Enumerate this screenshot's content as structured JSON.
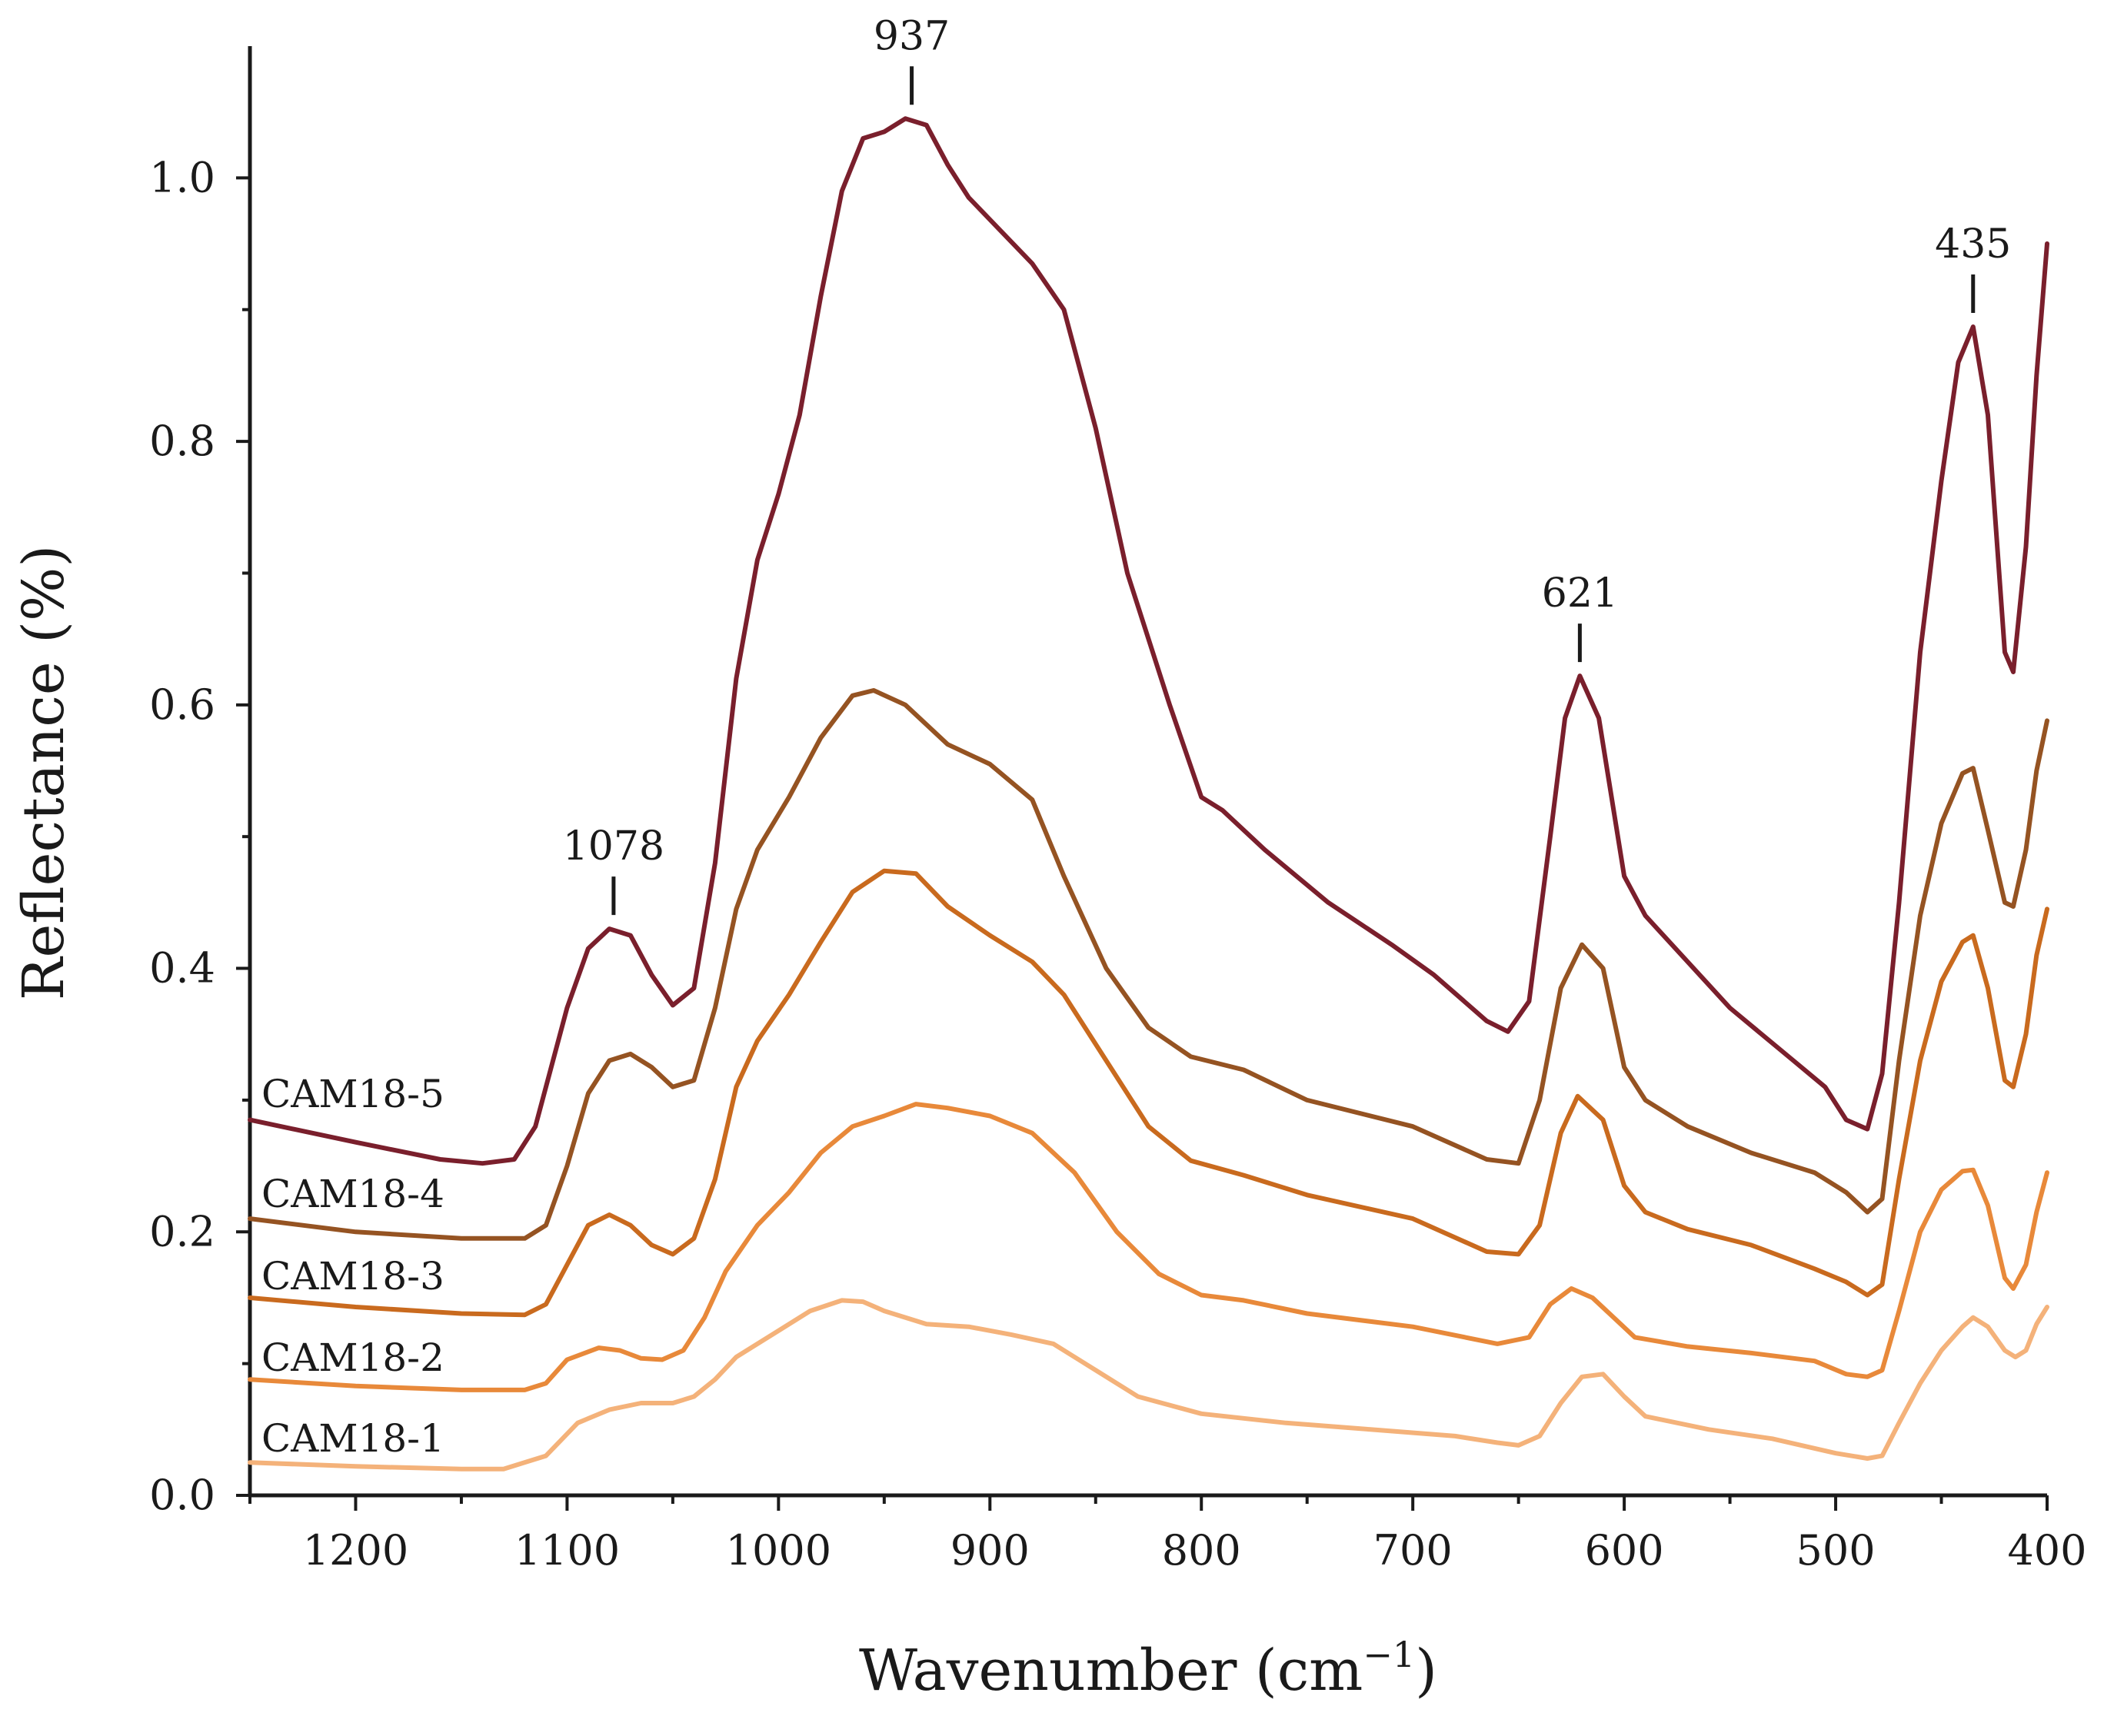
{
  "chart_data": {
    "type": "line",
    "title": "",
    "xlabel": "Wavenumber (cm",
    "xlabel_sup": "−1",
    "xlabel_close": ")",
    "ylabel": "Reflectance (%)",
    "xlim": [
      1250,
      400
    ],
    "ylim": [
      0,
      1.1
    ],
    "x_reversed": true,
    "grid": false,
    "xticks": [
      1200,
      1100,
      1000,
      900,
      800,
      700,
      600,
      500,
      400
    ],
    "xtick_labels": [
      "1200",
      "1100",
      "1000",
      "900",
      "800",
      "700",
      "600",
      "500",
      "400"
    ],
    "yticks": [
      0.0,
      0.2,
      0.4,
      0.6,
      0.8,
      1.0
    ],
    "ytick_labels": [
      "0.0",
      "0.2",
      "0.4",
      "0.6",
      "0.8",
      "1.0"
    ],
    "peak_annotations": [
      {
        "label": "1078",
        "x": 1078,
        "y": 0.43,
        "series": "CAM18-5"
      },
      {
        "label": "937",
        "x": 937,
        "y": 1.045,
        "series": "CAM18-5"
      },
      {
        "label": "621",
        "x": 621,
        "y": 0.622,
        "series": "CAM18-5"
      },
      {
        "label": "435",
        "x": 435,
        "y": 0.887,
        "series": "CAM18-5"
      }
    ],
    "series": [
      {
        "name": "CAM18-1",
        "color": "#f4b27a",
        "points": [
          [
            1250,
            0.025
          ],
          [
            1200,
            0.022
          ],
          [
            1150,
            0.02
          ],
          [
            1130,
            0.02
          ],
          [
            1110,
            0.03
          ],
          [
            1095,
            0.055
          ],
          [
            1080,
            0.065
          ],
          [
            1065,
            0.07
          ],
          [
            1050,
            0.07
          ],
          [
            1040,
            0.075
          ],
          [
            1030,
            0.088
          ],
          [
            1020,
            0.105
          ],
          [
            1000,
            0.125
          ],
          [
            985,
            0.14
          ],
          [
            970,
            0.148
          ],
          [
            960,
            0.147
          ],
          [
            950,
            0.14
          ],
          [
            930,
            0.13
          ],
          [
            910,
            0.128
          ],
          [
            890,
            0.122
          ],
          [
            870,
            0.115
          ],
          [
            850,
            0.095
          ],
          [
            830,
            0.075
          ],
          [
            800,
            0.062
          ],
          [
            760,
            0.055
          ],
          [
            720,
            0.05
          ],
          [
            680,
            0.045
          ],
          [
            660,
            0.04
          ],
          [
            650,
            0.038
          ],
          [
            640,
            0.045
          ],
          [
            630,
            0.07
          ],
          [
            620,
            0.09
          ],
          [
            610,
            0.092
          ],
          [
            600,
            0.075
          ],
          [
            590,
            0.06
          ],
          [
            560,
            0.05
          ],
          [
            530,
            0.043
          ],
          [
            500,
            0.032
          ],
          [
            485,
            0.028
          ],
          [
            478,
            0.03
          ],
          [
            470,
            0.055
          ],
          [
            460,
            0.085
          ],
          [
            450,
            0.11
          ],
          [
            440,
            0.128
          ],
          [
            435,
            0.135
          ],
          [
            428,
            0.128
          ],
          [
            420,
            0.11
          ],
          [
            415,
            0.105
          ],
          [
            410,
            0.11
          ],
          [
            405,
            0.13
          ],
          [
            400,
            0.143
          ]
        ]
      },
      {
        "name": "CAM18-2",
        "color": "#e8893a",
        "points": [
          [
            1250,
            0.088
          ],
          [
            1200,
            0.083
          ],
          [
            1150,
            0.08
          ],
          [
            1120,
            0.08
          ],
          [
            1110,
            0.085
          ],
          [
            1100,
            0.103
          ],
          [
            1085,
            0.112
          ],
          [
            1075,
            0.11
          ],
          [
            1065,
            0.104
          ],
          [
            1055,
            0.103
          ],
          [
            1045,
            0.11
          ],
          [
            1035,
            0.135
          ],
          [
            1025,
            0.17
          ],
          [
            1010,
            0.205
          ],
          [
            995,
            0.23
          ],
          [
            980,
            0.26
          ],
          [
            965,
            0.28
          ],
          [
            950,
            0.288
          ],
          [
            935,
            0.297
          ],
          [
            920,
            0.294
          ],
          [
            900,
            0.288
          ],
          [
            880,
            0.275
          ],
          [
            860,
            0.245
          ],
          [
            840,
            0.2
          ],
          [
            820,
            0.168
          ],
          [
            800,
            0.152
          ],
          [
            780,
            0.148
          ],
          [
            750,
            0.138
          ],
          [
            700,
            0.128
          ],
          [
            660,
            0.115
          ],
          [
            645,
            0.12
          ],
          [
            635,
            0.145
          ],
          [
            625,
            0.157
          ],
          [
            615,
            0.15
          ],
          [
            605,
            0.135
          ],
          [
            595,
            0.12
          ],
          [
            570,
            0.113
          ],
          [
            540,
            0.108
          ],
          [
            510,
            0.102
          ],
          [
            495,
            0.092
          ],
          [
            485,
            0.09
          ],
          [
            478,
            0.095
          ],
          [
            470,
            0.14
          ],
          [
            460,
            0.2
          ],
          [
            450,
            0.232
          ],
          [
            440,
            0.246
          ],
          [
            435,
            0.247
          ],
          [
            428,
            0.22
          ],
          [
            420,
            0.165
          ],
          [
            416,
            0.157
          ],
          [
            410,
            0.175
          ],
          [
            405,
            0.215
          ],
          [
            400,
            0.245
          ]
        ]
      },
      {
        "name": "CAM18-3",
        "color": "#c96a1e",
        "points": [
          [
            1250,
            0.15
          ],
          [
            1200,
            0.143
          ],
          [
            1150,
            0.138
          ],
          [
            1120,
            0.137
          ],
          [
            1110,
            0.145
          ],
          [
            1100,
            0.175
          ],
          [
            1090,
            0.205
          ],
          [
            1080,
            0.213
          ],
          [
            1070,
            0.205
          ],
          [
            1060,
            0.19
          ],
          [
            1050,
            0.183
          ],
          [
            1040,
            0.195
          ],
          [
            1030,
            0.24
          ],
          [
            1020,
            0.31
          ],
          [
            1010,
            0.345
          ],
          [
            995,
            0.38
          ],
          [
            980,
            0.42
          ],
          [
            965,
            0.458
          ],
          [
            950,
            0.474
          ],
          [
            935,
            0.472
          ],
          [
            920,
            0.447
          ],
          [
            900,
            0.425
          ],
          [
            880,
            0.405
          ],
          [
            865,
            0.38
          ],
          [
            845,
            0.33
          ],
          [
            825,
            0.28
          ],
          [
            805,
            0.254
          ],
          [
            780,
            0.243
          ],
          [
            750,
            0.228
          ],
          [
            700,
            0.21
          ],
          [
            665,
            0.185
          ],
          [
            650,
            0.183
          ],
          [
            640,
            0.205
          ],
          [
            630,
            0.275
          ],
          [
            622,
            0.303
          ],
          [
            610,
            0.285
          ],
          [
            600,
            0.235
          ],
          [
            590,
            0.215
          ],
          [
            570,
            0.202
          ],
          [
            540,
            0.19
          ],
          [
            510,
            0.172
          ],
          [
            495,
            0.162
          ],
          [
            485,
            0.152
          ],
          [
            478,
            0.16
          ],
          [
            470,
            0.24
          ],
          [
            460,
            0.33
          ],
          [
            450,
            0.39
          ],
          [
            440,
            0.42
          ],
          [
            435,
            0.425
          ],
          [
            428,
            0.385
          ],
          [
            420,
            0.315
          ],
          [
            416,
            0.31
          ],
          [
            410,
            0.35
          ],
          [
            405,
            0.41
          ],
          [
            400,
            0.445
          ]
        ]
      },
      {
        "name": "CAM18-4",
        "color": "#955322",
        "points": [
          [
            1250,
            0.21
          ],
          [
            1200,
            0.2
          ],
          [
            1150,
            0.195
          ],
          [
            1120,
            0.195
          ],
          [
            1110,
            0.205
          ],
          [
            1100,
            0.25
          ],
          [
            1090,
            0.305
          ],
          [
            1080,
            0.33
          ],
          [
            1070,
            0.335
          ],
          [
            1060,
            0.325
          ],
          [
            1050,
            0.31
          ],
          [
            1040,
            0.315
          ],
          [
            1030,
            0.37
          ],
          [
            1020,
            0.445
          ],
          [
            1010,
            0.49
          ],
          [
            995,
            0.53
          ],
          [
            980,
            0.575
          ],
          [
            965,
            0.607
          ],
          [
            955,
            0.611
          ],
          [
            940,
            0.6
          ],
          [
            920,
            0.57
          ],
          [
            900,
            0.555
          ],
          [
            880,
            0.528
          ],
          [
            865,
            0.47
          ],
          [
            845,
            0.4
          ],
          [
            825,
            0.355
          ],
          [
            805,
            0.333
          ],
          [
            780,
            0.323
          ],
          [
            750,
            0.3
          ],
          [
            700,
            0.28
          ],
          [
            665,
            0.255
          ],
          [
            650,
            0.252
          ],
          [
            640,
            0.3
          ],
          [
            630,
            0.385
          ],
          [
            620,
            0.418
          ],
          [
            610,
            0.4
          ],
          [
            600,
            0.325
          ],
          [
            590,
            0.3
          ],
          [
            570,
            0.28
          ],
          [
            540,
            0.26
          ],
          [
            510,
            0.245
          ],
          [
            495,
            0.23
          ],
          [
            485,
            0.215
          ],
          [
            478,
            0.225
          ],
          [
            470,
            0.33
          ],
          [
            460,
            0.44
          ],
          [
            450,
            0.51
          ],
          [
            440,
            0.548
          ],
          [
            435,
            0.552
          ],
          [
            428,
            0.505
          ],
          [
            420,
            0.45
          ],
          [
            416,
            0.447
          ],
          [
            410,
            0.49
          ],
          [
            405,
            0.55
          ],
          [
            400,
            0.588
          ]
        ]
      },
      {
        "name": "CAM18-5",
        "color": "#7a1f2c",
        "points": [
          [
            1250,
            0.285
          ],
          [
            1200,
            0.268
          ],
          [
            1160,
            0.255
          ],
          [
            1140,
            0.252
          ],
          [
            1125,
            0.255
          ],
          [
            1115,
            0.28
          ],
          [
            1100,
            0.37
          ],
          [
            1090,
            0.415
          ],
          [
            1080,
            0.43
          ],
          [
            1070,
            0.425
          ],
          [
            1060,
            0.395
          ],
          [
            1050,
            0.372
          ],
          [
            1040,
            0.385
          ],
          [
            1030,
            0.48
          ],
          [
            1020,
            0.62
          ],
          [
            1010,
            0.71
          ],
          [
            1000,
            0.76
          ],
          [
            990,
            0.82
          ],
          [
            980,
            0.91
          ],
          [
            970,
            0.99
          ],
          [
            960,
            1.03
          ],
          [
            950,
            1.035
          ],
          [
            940,
            1.045
          ],
          [
            930,
            1.04
          ],
          [
            920,
            1.01
          ],
          [
            910,
            0.985
          ],
          [
            895,
            0.96
          ],
          [
            880,
            0.935
          ],
          [
            865,
            0.9
          ],
          [
            850,
            0.81
          ],
          [
            835,
            0.7
          ],
          [
            815,
            0.6
          ],
          [
            800,
            0.53
          ],
          [
            790,
            0.52
          ],
          [
            770,
            0.49
          ],
          [
            740,
            0.45
          ],
          [
            710,
            0.418
          ],
          [
            690,
            0.395
          ],
          [
            665,
            0.36
          ],
          [
            655,
            0.352
          ],
          [
            645,
            0.375
          ],
          [
            635,
            0.5
          ],
          [
            628,
            0.59
          ],
          [
            621,
            0.622
          ],
          [
            612,
            0.59
          ],
          [
            600,
            0.47
          ],
          [
            590,
            0.44
          ],
          [
            570,
            0.405
          ],
          [
            550,
            0.37
          ],
          [
            520,
            0.33
          ],
          [
            505,
            0.31
          ],
          [
            495,
            0.285
          ],
          [
            485,
            0.278
          ],
          [
            478,
            0.32
          ],
          [
            470,
            0.45
          ],
          [
            460,
            0.64
          ],
          [
            450,
            0.77
          ],
          [
            442,
            0.86
          ],
          [
            435,
            0.887
          ],
          [
            428,
            0.82
          ],
          [
            420,
            0.64
          ],
          [
            416,
            0.625
          ],
          [
            410,
            0.72
          ],
          [
            405,
            0.85
          ],
          [
            400,
            0.95
          ]
        ]
      }
    ],
    "series_labels": [
      "CAM18-5",
      "CAM18-4",
      "CAM18-3",
      "CAM18-2",
      "CAM18-1"
    ]
  }
}
